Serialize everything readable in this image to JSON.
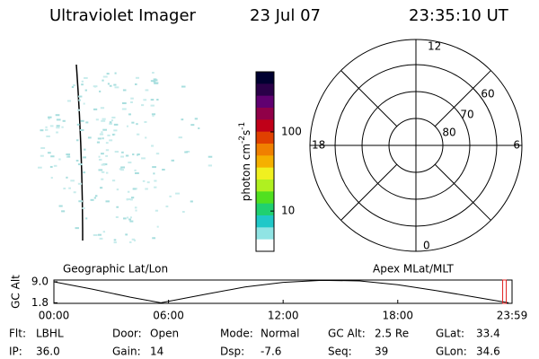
{
  "header": {
    "title": "Ultraviolet Imager",
    "date": "23 Jul 07",
    "time": "23:35:10 UT"
  },
  "colorbar": {
    "label": [
      "photon cm",
      "-2",
      "s",
      "-1"
    ],
    "scale": "log",
    "lim": [
      3.1,
      575
    ],
    "ticks": [
      10,
      100
    ],
    "colors": [
      "#000030",
      "#2a0048",
      "#600070",
      "#900048",
      "#c00018",
      "#e04000",
      "#f08000",
      "#f5b000",
      "#f0f020",
      "#b0f020",
      "#50e020",
      "#20d070",
      "#20c8c8",
      "#90e4e4",
      "#ffffff"
    ]
  },
  "polar": {
    "ring_labels": [
      "80",
      "70",
      "60"
    ],
    "mlt_labels": [
      "12",
      "6",
      "0",
      "18"
    ]
  },
  "chart_data": {
    "type": "line",
    "title": "Geographic Lat/Lon",
    "subtitle": "Apex MLat/MLT",
    "y_label": "GC Alt",
    "x": [
      0,
      2,
      4,
      5.6,
      8,
      10,
      12,
      14,
      16,
      18,
      20,
      22,
      23.8
    ],
    "values": [
      9.0,
      6.5,
      3.7,
      1.8,
      4.8,
      7.2,
      8.8,
      9.5,
      9.3,
      8.0,
      6.0,
      3.8,
      1.8
    ],
    "color": "#000000",
    "cursor": 23.586,
    "cursor_color": "#e02020",
    "xlim": [
      0,
      23.983
    ],
    "ylim": [
      1.6,
      9.6
    ],
    "xticks": [
      {
        "value": 0,
        "label": "00:00"
      },
      {
        "value": 6,
        "label": "06:00"
      },
      {
        "value": 12,
        "label": "12:00"
      },
      {
        "value": 18,
        "label": "18:00"
      },
      {
        "value": 23.983,
        "label": "23:59"
      }
    ],
    "yticks": [
      {
        "value": 1.8,
        "label": "1.8"
      },
      {
        "value": 9.0,
        "label": "9.0"
      }
    ]
  },
  "footer": {
    "rows": [
      [
        {
          "label": "Flt:",
          "value": "LBHL"
        },
        {
          "label": "Door:",
          "value": "Open"
        },
        {
          "label": "Mode:",
          "value": "Normal"
        },
        {
          "label": "GC Alt:",
          "value": "2.5 Re"
        },
        {
          "label": "GLat:",
          "value": "33.4"
        }
      ],
      [
        {
          "label": "IP:",
          "value": "36.0"
        },
        {
          "label": "Gain:",
          "value": "14"
        },
        {
          "label": "Dsp:",
          "value": "-7.6"
        },
        {
          "label": "Seq:",
          "value": "39"
        },
        {
          "label": "GLon:",
          "value": "34.6"
        }
      ]
    ]
  }
}
